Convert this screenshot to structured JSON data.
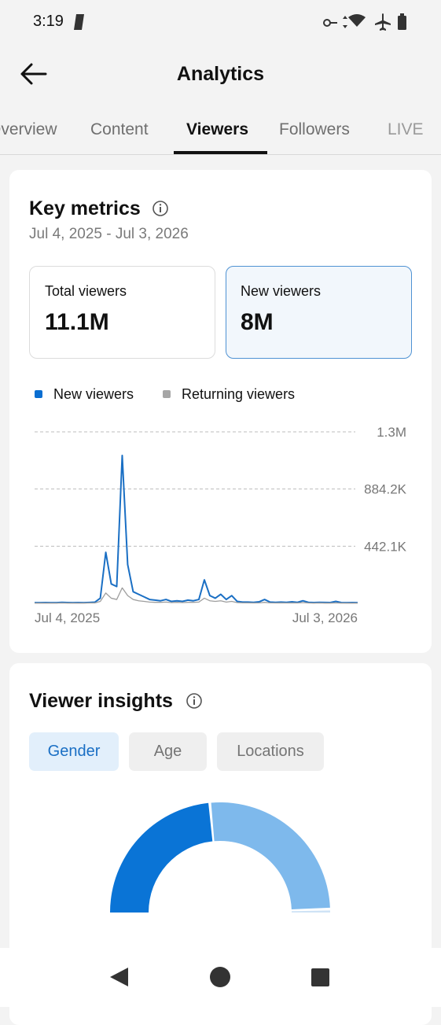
{
  "status_bar": {
    "time": "3:19"
  },
  "header": {
    "title": "Analytics"
  },
  "tabs": [
    "Overview",
    "Content",
    "Viewers",
    "Followers",
    "LIVE"
  ],
  "key_metrics": {
    "title": "Key metrics",
    "date_range": "Jul 4, 2025 - Jul 3, 2026",
    "cards": [
      {
        "label": "Total viewers",
        "value": "11.1M"
      },
      {
        "label": "New viewers",
        "value": "8M"
      }
    ],
    "chart_data": {
      "type": "line",
      "categories": [
        "Jul 4, 2025",
        null,
        null,
        null,
        null,
        null,
        null,
        null,
        null,
        null,
        null,
        null,
        null,
        null,
        null,
        null,
        null,
        null,
        null,
        null,
        null,
        null,
        null,
        null,
        null,
        null,
        null,
        null,
        null,
        null,
        null,
        null,
        null,
        null,
        null,
        null,
        null,
        null,
        null,
        null,
        null,
        null,
        null,
        null,
        null,
        null,
        null,
        null,
        null,
        null,
        null,
        null,
        null,
        null,
        null,
        null,
        null,
        null,
        null,
        "Jul 3, 2026"
      ],
      "series": [
        {
          "name": "New viewers",
          "color": "#1a6fc4",
          "values": [
            5000,
            5000,
            6000,
            5000,
            5000,
            8000,
            6000,
            5000,
            6000,
            5000,
            7000,
            9000,
            40000,
            395000,
            150000,
            130000,
            1144000,
            300000,
            90000,
            70000,
            50000,
            30000,
            25000,
            20000,
            30000,
            15000,
            20000,
            15000,
            25000,
            20000,
            30000,
            182000,
            60000,
            40000,
            70000,
            30000,
            60000,
            15000,
            10000,
            10000,
            8000,
            12000,
            30000,
            10000,
            8000,
            10000,
            8000,
            12000,
            8000,
            20000,
            8000,
            6000,
            8000,
            7000,
            6000,
            15000,
            6000,
            5000,
            6000,
            5000
          ]
        },
        {
          "name": "Returning viewers",
          "color": "#9e9e9e",
          "values": [
            2000,
            2000,
            2000,
            2000,
            2000,
            3000,
            2000,
            2000,
            2000,
            2000,
            3000,
            3000,
            15000,
            80000,
            40000,
            30000,
            120000,
            60000,
            30000,
            20000,
            15000,
            10000,
            8000,
            8000,
            10000,
            6000,
            8000,
            6000,
            8000,
            8000,
            10000,
            40000,
            20000,
            15000,
            20000,
            10000,
            15000,
            6000,
            4000,
            4000,
            3000,
            4000,
            8000,
            4000,
            3000,
            4000,
            3000,
            4000,
            3000,
            6000,
            3000,
            2000,
            3000,
            2000,
            2000,
            4000,
            2000,
            2000,
            2000,
            2000
          ]
        }
      ],
      "legend_colors": [
        "#0a6ed1",
        "#a6a6a6"
      ],
      "ylim": [
        0,
        1326300
      ],
      "yticks": [
        {
          "value": 442100,
          "label": "442.1K"
        },
        {
          "value": 884200,
          "label": "884.2K"
        },
        {
          "value": 1326300,
          "label": "1.3M"
        }
      ],
      "grid": true
    }
  },
  "viewer_insights": {
    "title": "Viewer insights",
    "tabs": [
      "Gender",
      "Age",
      "Locations"
    ],
    "chart_data": {
      "type": "pie",
      "values": [
        47,
        52,
        1
      ],
      "colors": [
        "#0a74d6",
        "#7eb9ec",
        "#cfe3f6"
      ]
    }
  }
}
